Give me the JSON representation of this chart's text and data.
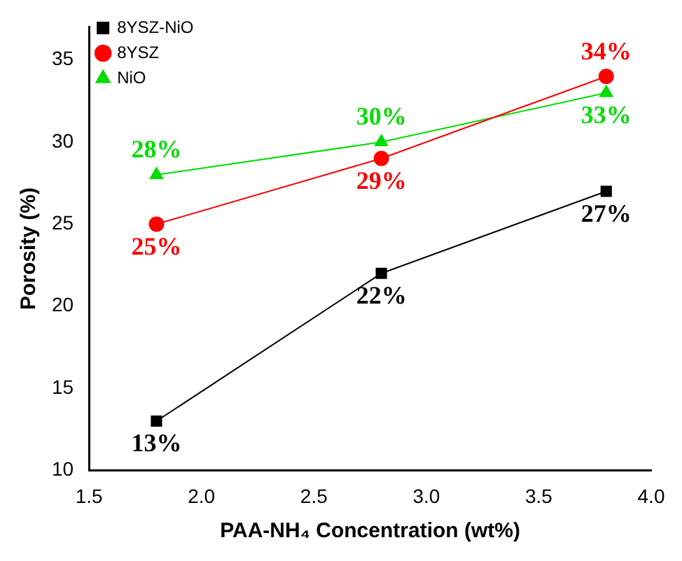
{
  "chart_data": {
    "type": "line",
    "xlabel": "PAA-NH₄ Concentration (wt%)",
    "ylabel": "Porosity (%)",
    "x": [
      1.8,
      2.8,
      3.8
    ],
    "series": [
      {
        "name": "8YSZ-NiO",
        "color": "#000000",
        "marker": "square",
        "values": [
          13,
          22,
          27
        ],
        "value_labels": [
          "13%",
          "22%",
          "27%"
        ]
      },
      {
        "name": "8YSZ",
        "color": "#ff0000",
        "marker": "circle",
        "values": [
          25,
          29,
          34
        ],
        "value_labels": [
          "25%",
          "29%",
          "34%"
        ]
      },
      {
        "name": "NiO",
        "color": "#00dd00",
        "marker": "triangle",
        "values": [
          28,
          30,
          33
        ],
        "value_labels": [
          "28%",
          "30%",
          "33%"
        ]
      }
    ],
    "xlim": [
      1.5,
      4.0
    ],
    "xticks": [
      {
        "value": 1.5,
        "label": "1.5"
      },
      {
        "value": 2,
        "label": "2.0"
      },
      {
        "value": 2.5,
        "label": "2.5"
      },
      {
        "value": 3,
        "label": "3.0"
      },
      {
        "value": 3.5,
        "label": "3.5"
      },
      {
        "value": 4,
        "label": "4.0"
      }
    ],
    "ylim": [
      10,
      37
    ],
    "yticks": [
      10,
      15,
      20,
      25,
      30,
      35
    ],
    "legend": "top left",
    "grid": false,
    "line_style": "solid"
  }
}
